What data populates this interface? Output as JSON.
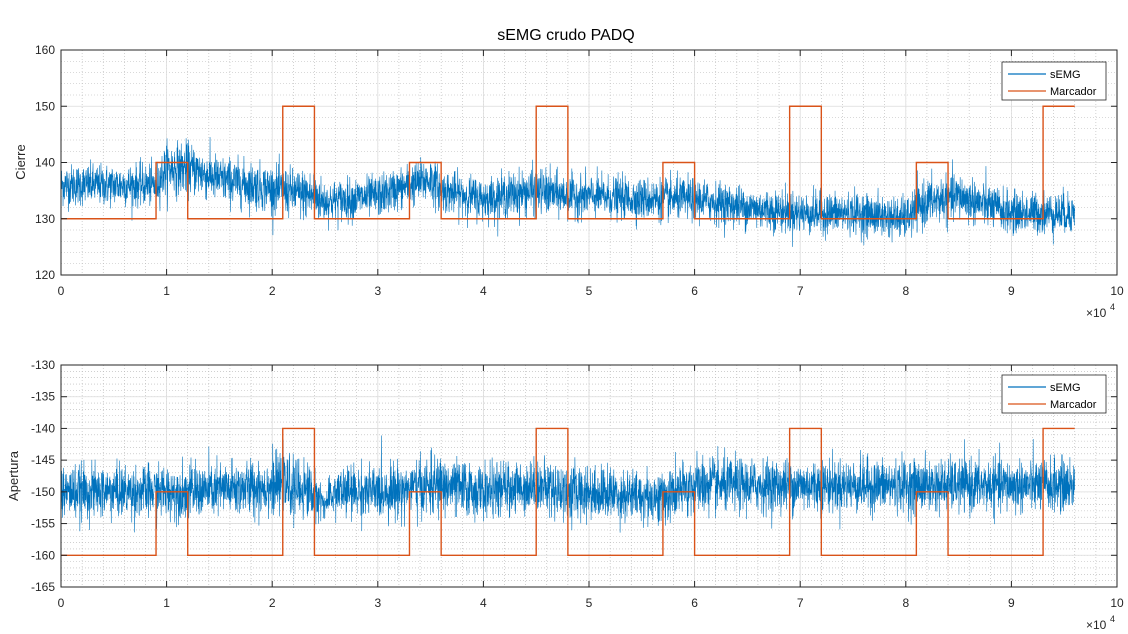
{
  "chart_data": {
    "type": "line",
    "title": "sEMG crudo PADQ",
    "colors": {
      "semg": "#0072BD",
      "marker": "#D95319",
      "grid": "#b4b4b4",
      "axis": "#262626"
    },
    "subplots": [
      {
        "ylabel": "Cierre",
        "xlim": [
          0,
          10
        ],
        "ylim": [
          120,
          160
        ],
        "x_multiplier": "×10",
        "x_multiplier_exp": "4",
        "x_ticks": [
          "0",
          "1",
          "2",
          "3",
          "4",
          "5",
          "6",
          "7",
          "8",
          "9",
          "10"
        ],
        "y_ticks": [
          "120",
          "130",
          "140",
          "150",
          "160"
        ],
        "grid": "major+minor",
        "legend": {
          "placement": "top-right",
          "entries": [
            "sEMG",
            "Marcador"
          ]
        },
        "series": [
          {
            "name": "sEMG",
            "kind": "noisy-signal",
            "x_range": [
              0,
              9.6
            ],
            "envelope_x": [
              0,
              0.5,
              0.9,
              1.0,
              1.2,
              1.5,
              2.1,
              2.4,
              2.5,
              3.0,
              3.3,
              3.5,
              3.6,
              4.0,
              4.5,
              4.8,
              5.0,
              5.5,
              6.0,
              6.5,
              7.0,
              7.5,
              8.0,
              8.2,
              8.5,
              9.0,
              9.6
            ],
            "envelope_mean": [
              136,
              136,
              136,
              139,
              139,
              137,
              135,
              134,
              133,
              134,
              136,
              137,
              135,
              133.5,
              135,
              134,
              134,
              133.5,
              133.5,
              132,
              131,
              131,
              130,
              133,
              134,
              131,
              131
            ],
            "envelope_spread": [
              4,
              4,
              4,
              5,
              5,
              4.5,
              4.5,
              5,
              4,
              4,
              4,
              4.5,
              4,
              4,
              4.5,
              4,
              4,
              4,
              4,
              4,
              4,
              4,
              4,
              4.5,
              4.5,
              4,
              4
            ],
            "y_extremes": [
              120.5,
              152.5
            ]
          },
          {
            "name": "Marcador",
            "kind": "step",
            "x": [
              0,
              0.9,
              0.9,
              1.2,
              1.2,
              2.1,
              2.1,
              2.4,
              2.4,
              3.3,
              3.3,
              3.6,
              3.6,
              4.5,
              4.5,
              4.8,
              4.8,
              5.7,
              5.7,
              6.0,
              6.0,
              6.9,
              6.9,
              7.2,
              7.2,
              8.1,
              8.1,
              8.4,
              8.4,
              9.3,
              9.3,
              9.6
            ],
            "y": [
              130,
              130,
              140,
              140,
              130,
              130,
              150,
              150,
              130,
              130,
              140,
              140,
              130,
              130,
              150,
              150,
              130,
              130,
              140,
              140,
              130,
              130,
              150,
              150,
              130,
              130,
              140,
              140,
              130,
              130,
              150,
              150
            ]
          }
        ]
      },
      {
        "ylabel": "Apertura",
        "xlim": [
          0,
          10
        ],
        "ylim": [
          -165,
          -130
        ],
        "x_multiplier": "×10",
        "x_multiplier_exp": "4",
        "x_ticks": [
          "0",
          "1",
          "2",
          "3",
          "4",
          "5",
          "6",
          "7",
          "8",
          "9",
          "10"
        ],
        "y_ticks": [
          "-165",
          "-160",
          "-155",
          "-150",
          "-145",
          "-140",
          "-135",
          "-130"
        ],
        "grid": "major+minor",
        "legend": {
          "placement": "top-right",
          "entries": [
            "sEMG",
            "Marcador"
          ]
        },
        "series": [
          {
            "name": "sEMG",
            "kind": "noisy-signal",
            "x_range": [
              0,
              9.6
            ],
            "envelope_x": [
              0,
              0.9,
              1.2,
              2.1,
              2.4,
              2.5,
              2.6,
              3.0,
              3.6,
              4.0,
              4.5,
              4.8,
              5.0,
              5.7,
              6.0,
              6.5,
              7.0,
              7.5,
              8.0,
              8.5,
              9.0,
              9.6
            ],
            "envelope_mean": [
              -150,
              -150,
              -150,
              -149,
              -150,
              -152,
              -150,
              -150,
              -149,
              -150,
              -149,
              -150,
              -150,
              -151,
              -149,
              -149,
              -149,
              -149,
              -149,
              -149,
              -149,
              -149
            ],
            "envelope_spread": [
              4.5,
              4.5,
              4.5,
              5,
              5,
              2,
              4.5,
              4.5,
              5,
              4.5,
              4.5,
              5,
              4.5,
              4.5,
              5,
              4.5,
              4.5,
              4.5,
              4.5,
              4.5,
              4.5,
              4.5
            ],
            "y_extremes": [
              -161.5,
              -135
            ]
          },
          {
            "name": "Marcador",
            "kind": "step",
            "x": [
              0,
              0.9,
              0.9,
              1.2,
              1.2,
              2.1,
              2.1,
              2.4,
              2.4,
              3.3,
              3.3,
              3.6,
              3.6,
              4.5,
              4.5,
              4.8,
              4.8,
              5.7,
              5.7,
              6.0,
              6.0,
              6.9,
              6.9,
              7.2,
              7.2,
              8.1,
              8.1,
              8.4,
              8.4,
              9.3,
              9.3,
              9.6
            ],
            "y": [
              -160,
              -160,
              -150,
              -150,
              -160,
              -160,
              -140,
              -140,
              -160,
              -160,
              -150,
              -150,
              -160,
              -160,
              -140,
              -140,
              -160,
              -160,
              -150,
              -150,
              -160,
              -160,
              -140,
              -140,
              -160,
              -160,
              -150,
              -150,
              -160,
              -160,
              -140,
              -140
            ]
          }
        ]
      }
    ]
  }
}
